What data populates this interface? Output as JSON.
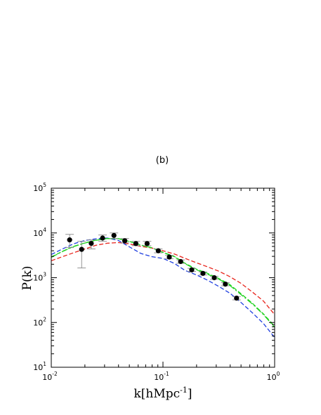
{
  "chart_data": {
    "type": "scatter",
    "panel_label": "(b)",
    "xlabel": {
      "base": "k[hMpc",
      "sup": "-1",
      "close": "]"
    },
    "ylabel": "P(k)",
    "xscale": "log",
    "yscale": "log",
    "xlim": [
      0.01,
      1
    ],
    "ylim": [
      10,
      100000
    ],
    "xticks": [
      {
        "value": 0.01,
        "base": "10",
        "exp": "-2"
      },
      {
        "value": 0.1,
        "base": "10",
        "exp": "-1"
      },
      {
        "value": 1,
        "base": "10",
        "exp": "0"
      }
    ],
    "yticks": [
      {
        "value": 10,
        "base": "10",
        "exp": "1"
      },
      {
        "value": 100,
        "base": "10",
        "exp": "2"
      },
      {
        "value": 1000,
        "base": "10",
        "exp": "3"
      },
      {
        "value": 10000,
        "base": "10",
        "exp": "4"
      },
      {
        "value": 100000,
        "base": "10",
        "exp": "5"
      }
    ],
    "grid": false,
    "points": {
      "color": "#000000",
      "error_color": "#888888",
      "values": [
        {
          "x": 0.0146,
          "y": 7000,
          "ylo": 4700,
          "yhi": 9300
        },
        {
          "x": 0.0187,
          "y": 4300,
          "ylo": 1650,
          "yhi": 6500
        },
        {
          "x": 0.0228,
          "y": 5850,
          "ylo": 4400,
          "yhi": 7000
        },
        {
          "x": 0.0288,
          "y": 7700,
          "ylo": 6500,
          "yhi": 9000
        },
        {
          "x": 0.0364,
          "y": 8800,
          "ylo": 7500,
          "yhi": 10000
        },
        {
          "x": 0.0455,
          "y": 6700,
          "ylo": 6000,
          "yhi": 7500
        },
        {
          "x": 0.0572,
          "y": 5800,
          "ylo": 5200,
          "yhi": 6500
        },
        {
          "x": 0.0721,
          "y": 5800,
          "ylo": 5200,
          "yhi": 6500
        },
        {
          "x": 0.0908,
          "y": 4000,
          "ylo": 3600,
          "yhi": 4400
        },
        {
          "x": 0.114,
          "y": 2900,
          "ylo": 2650,
          "yhi": 3150
        },
        {
          "x": 0.144,
          "y": 2300,
          "ylo": 2100,
          "yhi": 2500
        },
        {
          "x": 0.181,
          "y": 1500,
          "ylo": 1380,
          "yhi": 1620
        },
        {
          "x": 0.228,
          "y": 1250,
          "ylo": 1150,
          "yhi": 1350
        },
        {
          "x": 0.288,
          "y": 1000,
          "ylo": 920,
          "yhi": 1080
        },
        {
          "x": 0.362,
          "y": 720,
          "ylo": 660,
          "yhi": 780
        },
        {
          "x": 0.456,
          "y": 350,
          "ylo": 320,
          "yhi": 380
        }
      ]
    },
    "series": [
      {
        "color": "#e8231b",
        "dash": "dashed",
        "x": [
          0.01,
          0.0126,
          0.0158,
          0.02,
          0.0251,
          0.0316,
          0.0398,
          0.05,
          0.0631,
          0.0794,
          0.1,
          0.126,
          0.158,
          0.2,
          0.251,
          0.316,
          0.398,
          0.5,
          0.631,
          0.794,
          1.0
        ],
        "y": [
          2400,
          2950,
          3600,
          4400,
          5300,
          5900,
          6100,
          5700,
          5000,
          4600,
          4000,
          3400,
          2700,
          2150,
          1750,
          1400,
          1050,
          750,
          480,
          300,
          150
        ]
      },
      {
        "color": "#1f3fe0",
        "dash": "dashed",
        "x": [
          0.01,
          0.0126,
          0.0158,
          0.02,
          0.0251,
          0.0316,
          0.0398,
          0.05,
          0.0631,
          0.0794,
          0.1,
          0.126,
          0.158,
          0.2,
          0.251,
          0.316,
          0.398,
          0.5,
          0.631,
          0.794,
          1.0
        ],
        "y": [
          3300,
          4400,
          5700,
          6800,
          7400,
          7700,
          6800,
          4900,
          3500,
          2950,
          2700,
          2100,
          1450,
          1150,
          880,
          640,
          450,
          280,
          165,
          95,
          46
        ]
      },
      {
        "color": "#1fd21f",
        "dash": "dashed",
        "x": [
          0.01,
          0.0126,
          0.0158,
          0.02,
          0.0251,
          0.0316,
          0.0398,
          0.05,
          0.0631,
          0.0794,
          0.1,
          0.126,
          0.158,
          0.2,
          0.251,
          0.316,
          0.398,
          0.5,
          0.631,
          0.794,
          1.0
        ],
        "y": [
          2900,
          3900,
          5000,
          6000,
          6900,
          7500,
          7500,
          6500,
          5400,
          4700,
          3700,
          3000,
          2100,
          1550,
          1250,
          960,
          700,
          440,
          270,
          155,
          82
        ]
      },
      {
        "color": "#1fd21f",
        "dash": "dashdot",
        "x": [
          0.01,
          0.0126,
          0.0158,
          0.02,
          0.0251,
          0.0316,
          0.0398,
          0.05,
          0.0631,
          0.0794,
          0.1,
          0.126,
          0.158,
          0.2,
          0.251,
          0.316,
          0.398,
          0.5,
          0.631,
          0.794,
          1.0
        ],
        "y": [
          2850,
          3850,
          4950,
          5950,
          6850,
          7450,
          7450,
          6450,
          5350,
          4650,
          3650,
          2950,
          2050,
          1500,
          1200,
          930,
          670,
          420,
          260,
          150,
          78
        ]
      }
    ]
  }
}
